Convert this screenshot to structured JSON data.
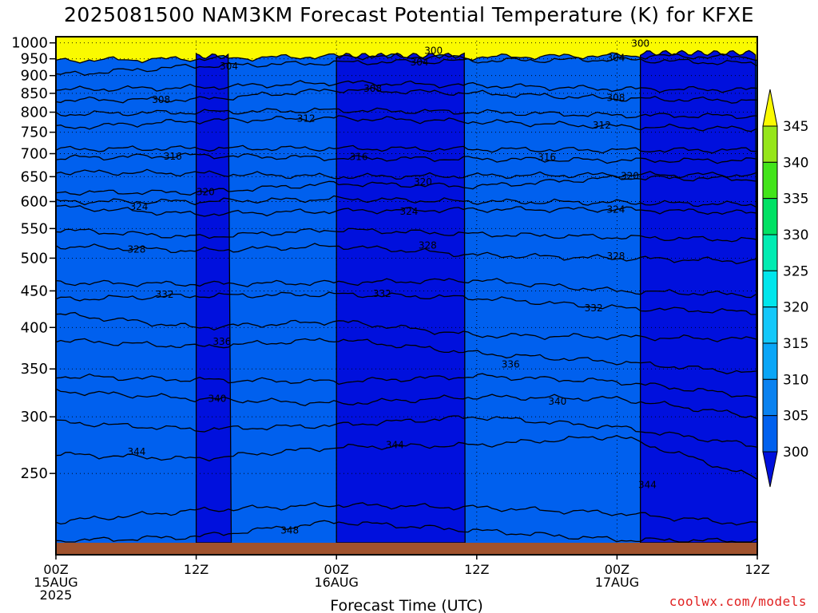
{
  "title": "2025081500 NAM3KM Forecast Potential Temperature (K) for KFXE",
  "credit": "coolwx.com/models",
  "colors": {
    "credit": "#e02020",
    "terrain": "#a0522d",
    "fill_levels": [
      {
        "min": 295,
        "max": 300,
        "color": "#0010dd"
      },
      {
        "min": 300,
        "max": 305,
        "color": "#0060ee"
      },
      {
        "min": 305,
        "max": 310,
        "color": "#0a82f0"
      },
      {
        "min": 310,
        "max": 315,
        "color": "#0aa6f7"
      },
      {
        "min": 315,
        "max": 320,
        "color": "#14c8fa"
      },
      {
        "min": 320,
        "max": 325,
        "color": "#00e6ec"
      },
      {
        "min": 325,
        "max": 330,
        "color": "#00ecb2"
      },
      {
        "min": 330,
        "max": 335,
        "color": "#00e164"
      },
      {
        "min": 335,
        "max": 340,
        "color": "#42e41a"
      },
      {
        "min": 340,
        "max": 345,
        "color": "#96e61a"
      },
      {
        "min": 345,
        "max": 360,
        "color": "#fafa00"
      }
    ]
  },
  "chart_data": {
    "type": "heatmap",
    "title": "2025081500 NAM3KM Forecast Potential Temperature (K) for KFXE",
    "xlabel": "Forecast Time (UTC)",
    "ylabel": "",
    "x_ticks": [
      {
        "hour": 0,
        "lines": [
          "00Z",
          "15AUG",
          "2025"
        ]
      },
      {
        "hour": 12,
        "lines": [
          "12Z"
        ]
      },
      {
        "hour": 24,
        "lines": [
          "00Z",
          "16AUG"
        ]
      },
      {
        "hour": 36,
        "lines": [
          "12Z"
        ]
      },
      {
        "hour": 48,
        "lines": [
          "00Z",
          "17AUG"
        ]
      },
      {
        "hour": 60,
        "lines": [
          "12Z"
        ]
      }
    ],
    "xlim": [
      0,
      60
    ],
    "y_ticks": [
      250,
      300,
      350,
      400,
      450,
      500,
      550,
      600,
      650,
      700,
      750,
      800,
      850,
      900,
      950,
      1000
    ],
    "ylim": [
      1020,
      200
    ],
    "y_scale": "log-pressure (hPa)",
    "grid": true,
    "colorbar": {
      "labels": [
        "345",
        "340",
        "335",
        "330",
        "325",
        "320",
        "315",
        "310",
        "305",
        "300"
      ],
      "values": [
        345,
        340,
        335,
        330,
        325,
        320,
        315,
        310,
        305,
        300
      ],
      "position": "right"
    },
    "contour_levels": [
      300,
      302,
      304,
      306,
      308,
      310,
      312,
      314,
      316,
      318,
      320,
      322,
      324,
      326,
      328,
      330,
      332,
      334,
      336,
      338,
      340,
      342,
      344,
      346,
      348
    ],
    "contour_labels": [
      {
        "text": "348",
        "hour": 20.0,
        "p": 208
      },
      {
        "text": "344",
        "hour": 6.9,
        "p": 268
      },
      {
        "text": "340",
        "hour": 13.8,
        "p": 318
      },
      {
        "text": "336",
        "hour": 14.2,
        "p": 382
      },
      {
        "text": "332",
        "hour": 9.3,
        "p": 445
      },
      {
        "text": "328",
        "hour": 6.9,
        "p": 514
      },
      {
        "text": "324",
        "hour": 7.1,
        "p": 590
      },
      {
        "text": "320",
        "hour": 12.8,
        "p": 619
      },
      {
        "text": "316",
        "hour": 10.0,
        "p": 694
      },
      {
        "text": "312",
        "hour": 21.4,
        "p": 784
      },
      {
        "text": "308",
        "hour": 9.0,
        "p": 833
      },
      {
        "text": "304",
        "hour": 14.8,
        "p": 928
      },
      {
        "text": "344",
        "hour": 29.0,
        "p": 274
      },
      {
        "text": "336",
        "hour": 38.9,
        "p": 355
      },
      {
        "text": "332",
        "hour": 27.9,
        "p": 446
      },
      {
        "text": "328",
        "hour": 31.8,
        "p": 521
      },
      {
        "text": "324",
        "hour": 30.2,
        "p": 581
      },
      {
        "text": "320",
        "hour": 31.4,
        "p": 639
      },
      {
        "text": "316",
        "hour": 25.9,
        "p": 693
      },
      {
        "text": "308",
        "hour": 27.1,
        "p": 863
      },
      {
        "text": "304",
        "hour": 31.1,
        "p": 940
      },
      {
        "text": "300",
        "hour": 32.3,
        "p": 975
      },
      {
        "text": "344",
        "hour": 50.6,
        "p": 241
      },
      {
        "text": "340",
        "hour": 42.9,
        "p": 315
      },
      {
        "text": "332",
        "hour": 46.0,
        "p": 426
      },
      {
        "text": "328",
        "hour": 47.9,
        "p": 503
      },
      {
        "text": "324",
        "hour": 47.9,
        "p": 585
      },
      {
        "text": "320",
        "hour": 49.1,
        "p": 651
      },
      {
        "text": "316",
        "hour": 42.0,
        "p": 692
      },
      {
        "text": "312",
        "hour": 46.7,
        "p": 767
      },
      {
        "text": "308",
        "hour": 47.9,
        "p": 838
      },
      {
        "text": "304",
        "hour": 47.9,
        "p": 953
      },
      {
        "text": "300",
        "hour": 50.0,
        "p": 998
      }
    ],
    "series": [
      {
        "temp": 348,
        "p": [
          201,
          204,
          214,
          208,
          202,
          201
        ]
      },
      {
        "temp": 346,
        "p": [
          214,
          222,
          226,
          224,
          220,
          212
        ]
      },
      {
        "temp": 344,
        "p": [
          266,
          262,
          272,
          274,
          282,
          246
        ]
      },
      {
        "temp": 342,
        "p": [
          295,
          288,
          292,
          300,
          290,
          273
        ]
      },
      {
        "temp": 340,
        "p": [
          326,
          318,
          313,
          320,
          318,
          300
        ]
      },
      {
        "temp": 338,
        "p": [
          342,
          338,
          336,
          342,
          336,
          320
        ]
      },
      {
        "temp": 336,
        "p": [
          384,
          376,
          385,
          368,
          358,
          345
        ]
      },
      {
        "temp": 334,
        "p": [
          418,
          400,
          408,
          390,
          388,
          385
        ]
      },
      {
        "temp": 332,
        "p": [
          438,
          443,
          445,
          440,
          426,
          420
        ]
      },
      {
        "temp": 330,
        "p": [
          462,
          460,
          462,
          466,
          450,
          444
        ]
      },
      {
        "temp": 328,
        "p": [
          520,
          512,
          520,
          505,
          500,
          495
        ]
      },
      {
        "temp": 326,
        "p": [
          548,
          535,
          548,
          540,
          535,
          530
        ]
      },
      {
        "temp": 324,
        "p": [
          590,
          576,
          582,
          585,
          585,
          578
        ]
      },
      {
        "temp": 322,
        "p": [
          600,
          600,
          605,
          600,
          598,
          594
        ]
      },
      {
        "temp": 320,
        "p": [
          618,
          618,
          636,
          630,
          648,
          645
        ]
      },
      {
        "temp": 318,
        "p": [
          660,
          657,
          650,
          652,
          654,
          654
        ]
      },
      {
        "temp": 316,
        "p": [
          690,
          696,
          690,
          688,
          685,
          685
        ]
      },
      {
        "temp": 314,
        "p": [
          710,
          712,
          712,
          710,
          708,
          708
        ]
      },
      {
        "temp": 312,
        "p": [
          760,
          778,
          785,
          776,
          764,
          758
        ]
      },
      {
        "temp": 310,
        "p": [
          795,
          800,
          805,
          800,
          792,
          790
        ]
      },
      {
        "temp": 308,
        "p": [
          832,
          833,
          860,
          850,
          836,
          830
        ]
      },
      {
        "temp": 306,
        "p": [
          860,
          866,
          880,
          872,
          862,
          860
        ]
      },
      {
        "temp": 304,
        "p": [
          902,
          928,
          938,
          944,
          948,
          935
        ]
      },
      {
        "temp": 302,
        "p": [
          945,
          950,
          958,
          955,
          960,
          955
        ]
      }
    ]
  }
}
